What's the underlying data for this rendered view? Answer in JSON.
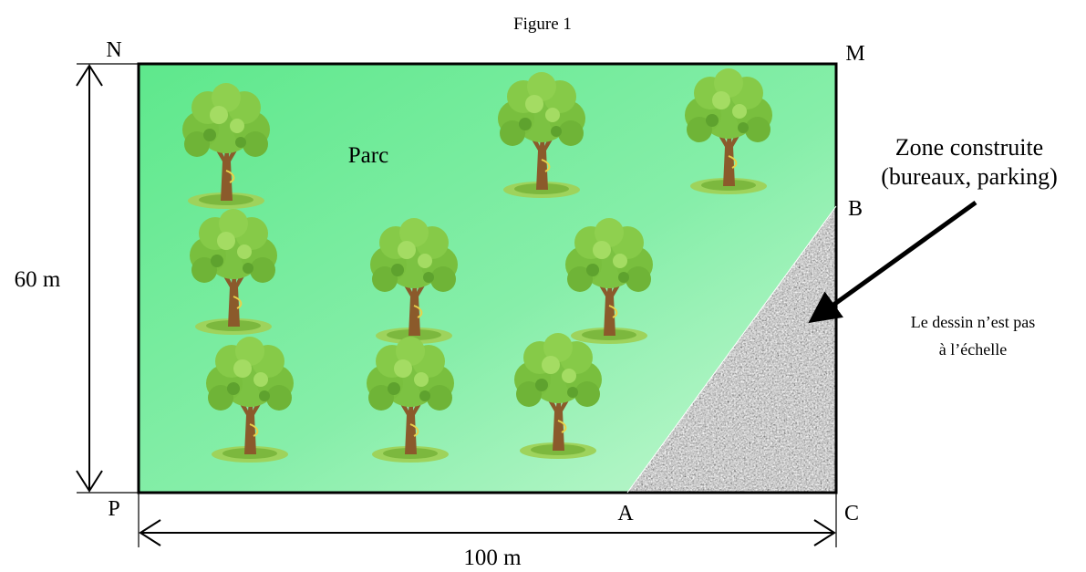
{
  "figure_title": "Figure 1",
  "zone_labels": {
    "park": "Parc",
    "built_line1": "Zone construite",
    "built_line2": "(bureaux, parking)"
  },
  "vertices": {
    "N": "N",
    "M": "M",
    "B": "B",
    "C": "C",
    "A": "A",
    "P": "P"
  },
  "dimensions": {
    "height": "60 m",
    "width": "100 m"
  },
  "note": {
    "line1": "Le dessin n’est pas",
    "line2": "à l’échelle"
  },
  "colors": {
    "park_green_light": "#b8f5c6",
    "park_green": "#5fe88e",
    "built_zone_gray": "#8a8a8a",
    "tree_foliage": "#7cc242",
    "tree_trunk": "#8b5a2b"
  },
  "tree_count": 9
}
